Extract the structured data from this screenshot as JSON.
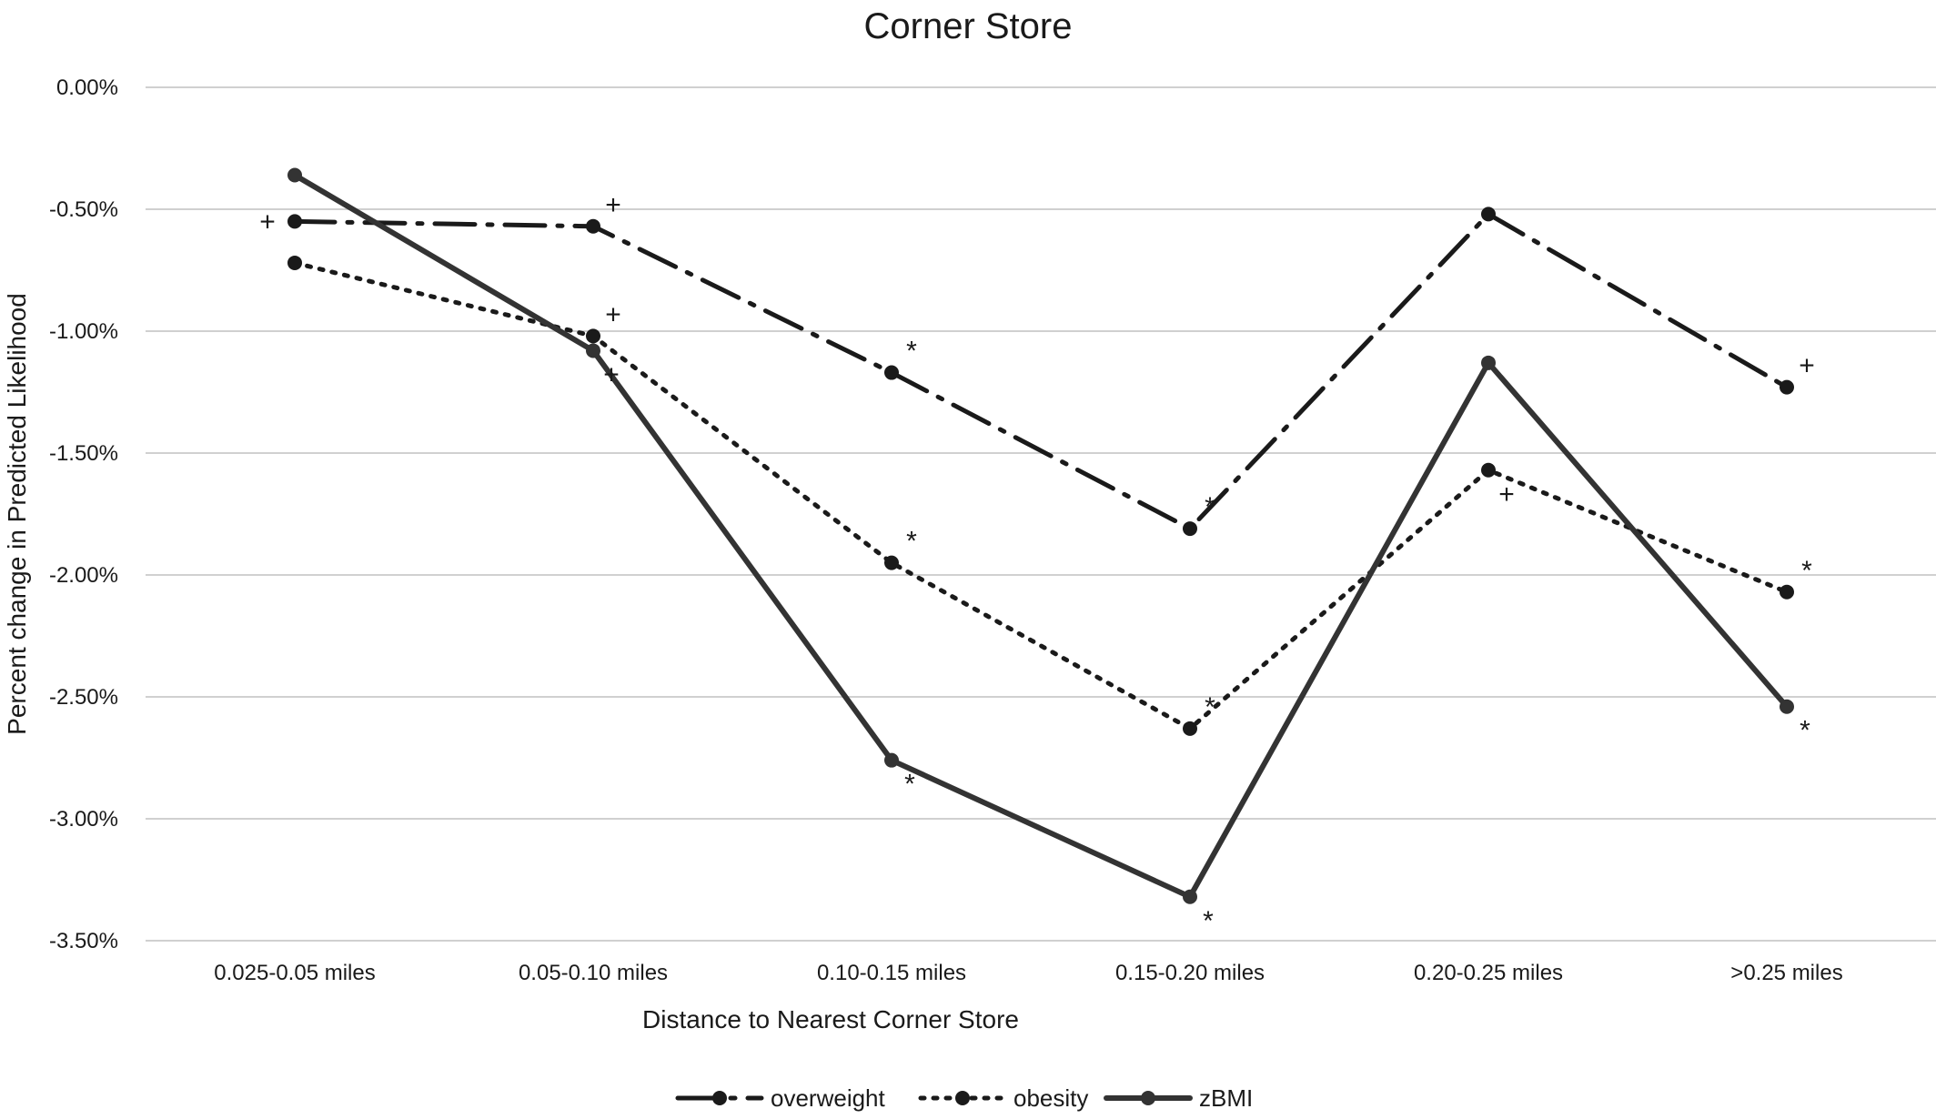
{
  "chart_data": {
    "type": "line",
    "title": "Corner Store",
    "xlabel": "Distance to Nearest Corner Store",
    "ylabel": "Percent change in Predicted Likelihood",
    "categories": [
      "0.025-0.05 miles",
      "0.05-0.10 miles",
      "0.10-0.15 miles",
      "0.15-0.20 miles",
      "0.20-0.25 miles",
      ">0.25 miles"
    ],
    "yticks": [
      "0.00%",
      "-0.50%",
      "-1.00%",
      "-1.50%",
      "-2.00%",
      "-2.50%",
      "-3.00%",
      "-3.50%"
    ],
    "ylim": [
      -3.5,
      0
    ],
    "grid": true,
    "legend_position": "bottom",
    "series": [
      {
        "name": "overweight",
        "style": "dash-dot",
        "color": "#1a1a1a",
        "values": [
          -0.55,
          -0.57,
          -1.17,
          -1.81,
          -0.52,
          -1.23
        ],
        "markers": [
          {
            "index": 0,
            "symbol": "+",
            "position": "left"
          },
          {
            "index": 1,
            "symbol": "+",
            "position": "above"
          },
          {
            "index": 2,
            "symbol": "*",
            "position": "above"
          },
          {
            "index": 3,
            "symbol": "*",
            "position": "above"
          },
          {
            "index": 5,
            "symbol": "+",
            "position": "above"
          }
        ]
      },
      {
        "name": "obesity",
        "style": "dotted",
        "color": "#1a1a1a",
        "values": [
          -0.72,
          -1.02,
          -1.95,
          -2.63,
          -1.57,
          -2.07
        ],
        "markers": [
          {
            "index": 1,
            "symbol": "+",
            "position": "above"
          },
          {
            "index": 2,
            "symbol": "*",
            "position": "above"
          },
          {
            "index": 3,
            "symbol": "*",
            "position": "above"
          },
          {
            "index": 4,
            "symbol": "+",
            "position": "below"
          },
          {
            "index": 5,
            "symbol": "*",
            "position": "above"
          }
        ]
      },
      {
        "name": "zBMI",
        "style": "solid",
        "color": "#333333",
        "values": [
          -0.36,
          -1.08,
          -2.76,
          -3.32,
          -1.13,
          -2.54
        ],
        "markers": [
          {
            "index": 1,
            "symbol": "+",
            "position": "below"
          },
          {
            "index": 2,
            "symbol": "*",
            "position": "below"
          },
          {
            "index": 3,
            "symbol": "*",
            "position": "below"
          },
          {
            "index": 5,
            "symbol": "*",
            "position": "below"
          }
        ]
      }
    ]
  }
}
